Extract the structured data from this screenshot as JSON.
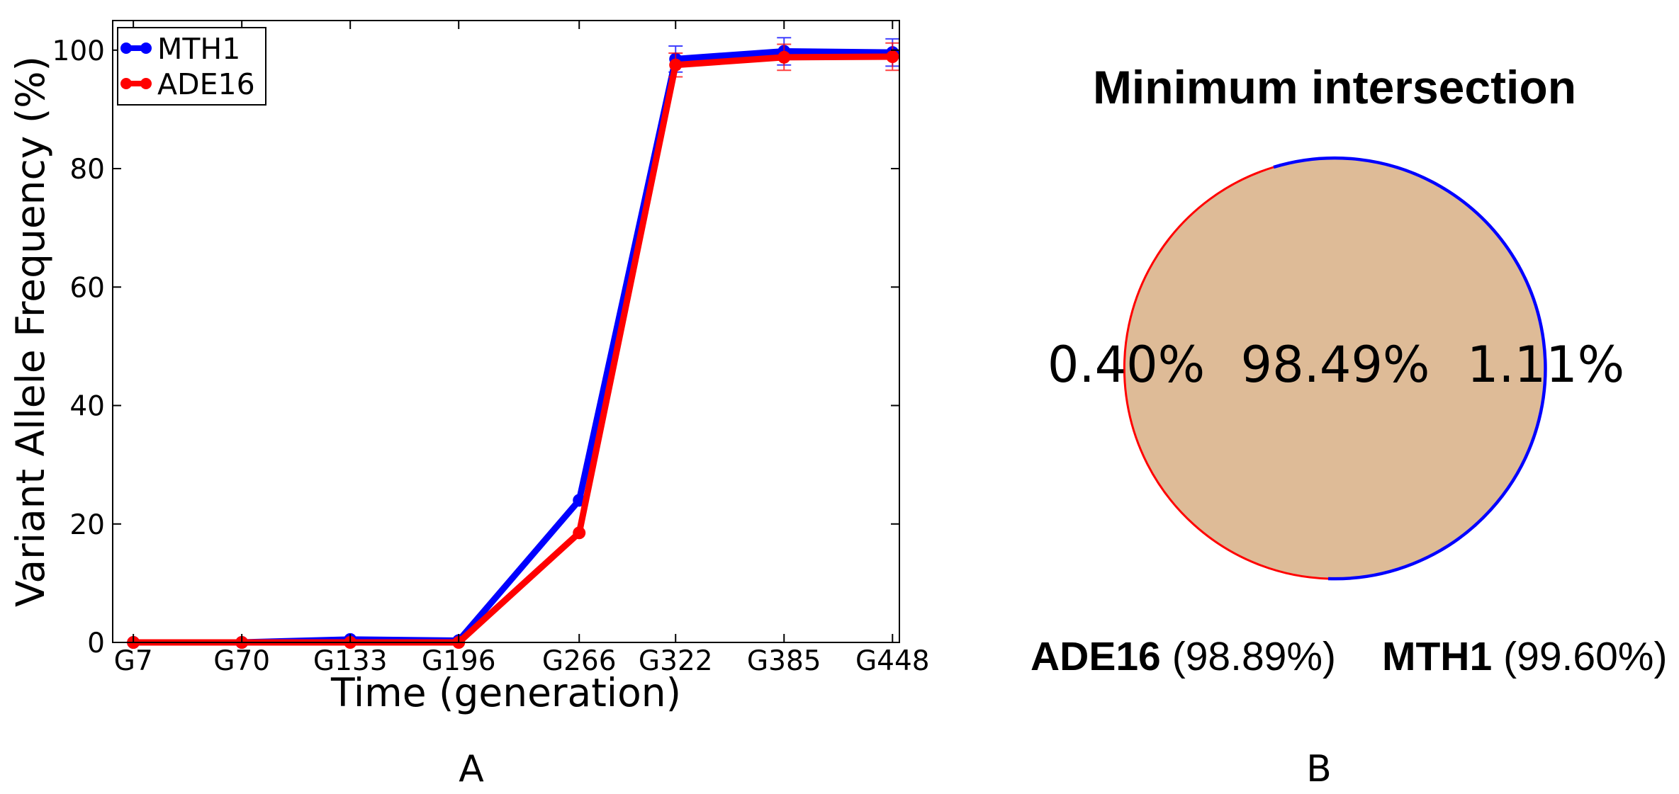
{
  "figure": {
    "panel_a_label": "A",
    "panel_b_label": "B"
  },
  "chart_data": {
    "type": "line",
    "x": [
      7,
      70,
      133,
      196,
      266,
      322,
      385,
      448
    ],
    "xtick_labels": [
      "G7",
      "G70",
      "G133",
      "G196",
      "G266",
      "G322",
      "G385",
      "G448"
    ],
    "xlim": [
      -5,
      452
    ],
    "ylim": [
      0,
      105
    ],
    "yticks": [
      0,
      20,
      40,
      60,
      80,
      100
    ],
    "xlabel": "Time (generation)",
    "ylabel": "Variant Allele Frequency (%)",
    "grid": false,
    "legend": "top-left",
    "series": [
      {
        "name": "MTH1",
        "color": "#0000ff",
        "values": [
          0,
          0,
          0.5,
          0.3,
          24,
          98.5,
          99.8,
          99.6
        ],
        "errors": [
          0,
          0,
          0,
          0,
          0,
          2.2,
          2.3,
          2.3
        ]
      },
      {
        "name": "ADE16",
        "color": "#ff0000",
        "values": [
          0,
          0,
          0,
          0,
          18.5,
          97.5,
          98.8,
          98.9
        ],
        "errors": [
          0,
          0,
          0,
          0,
          0,
          2.0,
          2.2,
          2.3
        ]
      }
    ]
  },
  "venn": {
    "title": "Minimum intersection",
    "overlap_color": "#debb97",
    "sets": [
      {
        "name": "ADE16",
        "value": "(98.89%)",
        "color": "#ff0000"
      },
      {
        "name": "MTH1",
        "value": "(99.60%)",
        "color": "#0000ff"
      }
    ],
    "regions": {
      "ade16_only": "0.40%",
      "both": "98.49%",
      "mth1_only": "1.11%"
    }
  }
}
